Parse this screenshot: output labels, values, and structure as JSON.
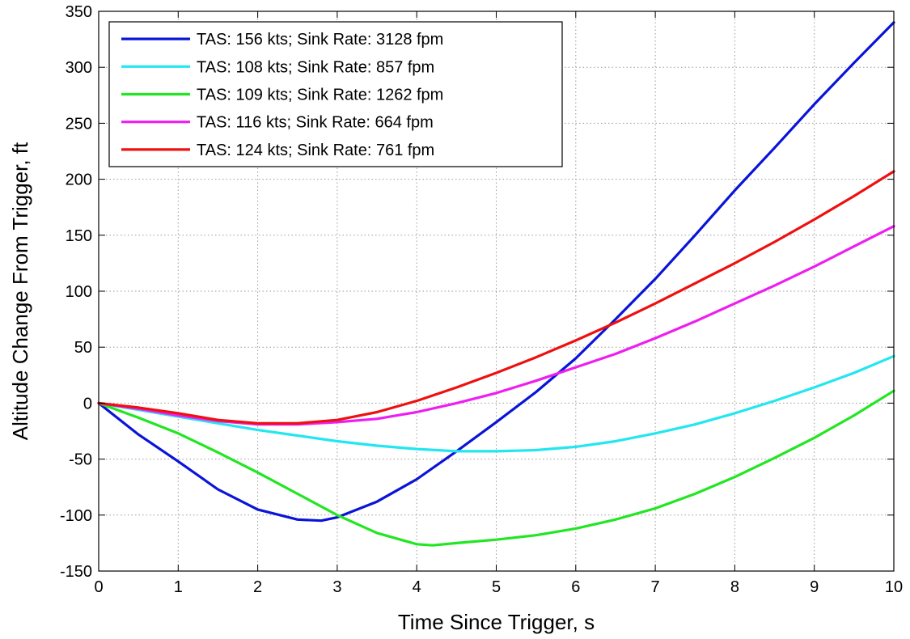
{
  "chart_data": {
    "type": "line",
    "title": "",
    "xlabel": "Time Since Trigger, s",
    "ylabel": "Altitude Change From Trigger, ft",
    "xlim": [
      0,
      10
    ],
    "ylim": [
      -150,
      350
    ],
    "xticks": [
      0,
      1,
      2,
      3,
      4,
      5,
      6,
      7,
      8,
      9,
      10
    ],
    "yticks": [
      -150,
      -100,
      -50,
      0,
      50,
      100,
      150,
      200,
      250,
      300,
      350
    ],
    "grid": true,
    "legend_location": "top-left",
    "series": [
      {
        "name": "TAS: 156 kts; Sink Rate: 3128 fpm",
        "color": "#0a14d8",
        "x": [
          0,
          0.5,
          1,
          1.5,
          2,
          2.5,
          2.8,
          3,
          3.5,
          4,
          4.5,
          5,
          5.5,
          6,
          6.5,
          7,
          7.5,
          8,
          8.5,
          9,
          9.5,
          10
        ],
        "y": [
          0,
          -28,
          -52,
          -77,
          -95,
          -104,
          -105,
          -102,
          -88,
          -68,
          -43,
          -17,
          10,
          40,
          75,
          111,
          150,
          190,
          228,
          267,
          304,
          340
        ]
      },
      {
        "name": "TAS: 108 kts; Sink Rate: 857 fpm",
        "color": "#22e6f0",
        "x": [
          0,
          0.5,
          1,
          1.5,
          2,
          2.5,
          3,
          3.5,
          4,
          4.5,
          5,
          5.5,
          6,
          6.5,
          7,
          7.5,
          8,
          8.5,
          9,
          9.5,
          10
        ],
        "y": [
          0,
          -6,
          -12,
          -18,
          -24,
          -29,
          -34,
          -38,
          -41,
          -43,
          -43,
          -42,
          -39,
          -34,
          -27,
          -19,
          -9,
          2,
          14,
          27,
          42
        ]
      },
      {
        "name": "TAS: 109 kts; Sink Rate: 1262 fpm",
        "color": "#22e622",
        "x": [
          0,
          0.5,
          1,
          1.5,
          2,
          2.5,
          3,
          3.5,
          4,
          4.2,
          4.5,
          5,
          5.5,
          6,
          6.5,
          7,
          7.5,
          8,
          8.5,
          9,
          9.5,
          10
        ],
        "y": [
          0,
          -13,
          -27,
          -44,
          -62,
          -81,
          -100,
          -116,
          -126,
          -127,
          -125,
          -122,
          -118,
          -112,
          -104,
          -94,
          -81,
          -66,
          -49,
          -31,
          -11,
          11
        ]
      },
      {
        "name": "TAS: 116 kts; Sink Rate: 664 fpm",
        "color": "#ee1ef0",
        "x": [
          0,
          0.5,
          1,
          1.5,
          2,
          2.5,
          3,
          3.5,
          4,
          4.5,
          5,
          5.5,
          6,
          6.5,
          7,
          7.5,
          8,
          8.5,
          9,
          9.5,
          10
        ],
        "y": [
          0,
          -5,
          -11,
          -16,
          -19,
          -19,
          -17,
          -14,
          -8,
          0,
          9,
          20,
          32,
          44,
          58,
          73,
          89,
          105,
          122,
          140,
          158
        ]
      },
      {
        "name": "TAS: 124 kts; Sink Rate: 761 fpm",
        "color": "#ee1010",
        "x": [
          0,
          0.5,
          1,
          1.5,
          2,
          2.5,
          3,
          3.5,
          4,
          4.5,
          5,
          5.5,
          6,
          6.5,
          7,
          7.5,
          8,
          8.5,
          9,
          9.5,
          10
        ],
        "y": [
          0,
          -4,
          -9,
          -15,
          -18,
          -18,
          -15,
          -8,
          2,
          14,
          27,
          41,
          56,
          72,
          89,
          107,
          125,
          144,
          164,
          185,
          207
        ]
      }
    ]
  }
}
